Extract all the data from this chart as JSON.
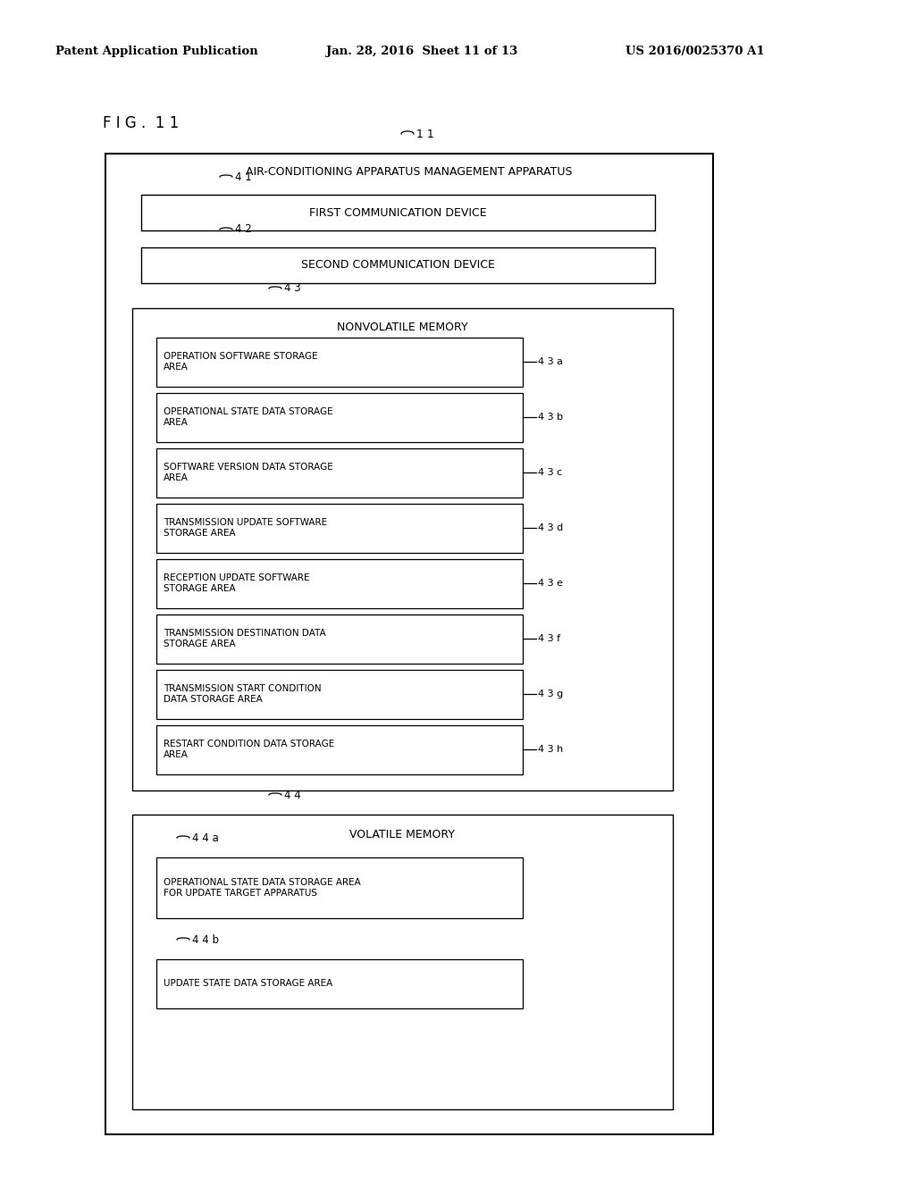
{
  "background_color": "#ffffff",
  "header_left": "Patent Application Publication",
  "header_mid": "Jan. 28, 2016  Sheet 11 of 13",
  "header_right": "US 2016/0025370 A1",
  "fig_label": "F I G .  1 1",
  "outer_box_label": "AIR-CONDITIONING APPARATUS MANAGEMENT APPARATUS",
  "outer_box_id": "1 1",
  "box41_label": "FIRST COMMUNICATION DEVICE",
  "box41_id": "4 1",
  "box42_label": "SECOND COMMUNICATION DEVICE",
  "box42_id": "4 2",
  "nonvol_label": "NONVOLATILE MEMORY",
  "nonvol_id": "4 3",
  "nonvol_items": [
    {
      "label": "OPERATION SOFTWARE STORAGE\nAREA",
      "id": "4 3 a"
    },
    {
      "label": "OPERATIONAL STATE DATA STORAGE\nAREA",
      "id": "4 3 b"
    },
    {
      "label": "SOFTWARE VERSION DATA STORAGE\nAREA",
      "id": "4 3 c"
    },
    {
      "label": "TRANSMISSION UPDATE SOFTWARE\nSTORAGE AREA",
      "id": "4 3 d"
    },
    {
      "label": "RECEPTION UPDATE SOFTWARE\nSTORAGE AREA",
      "id": "4 3 e"
    },
    {
      "label": "TRANSMISSION DESTINATION DATA\nSTORAGE AREA",
      "id": "4 3 f"
    },
    {
      "label": "TRANSMISSION START CONDITION\nDATA STORAGE AREA",
      "id": "4 3 g"
    },
    {
      "label": "RESTART CONDITION DATA STORAGE\nAREA",
      "id": "4 3 h"
    }
  ],
  "vol_label": "VOLATILE MEMORY",
  "vol_id": "4 4",
  "vol_items": [
    {
      "label": "OPERATIONAL STATE DATA STORAGE AREA\nFOR UPDATE TARGET APPARATUS",
      "id": "4 4 a"
    },
    {
      "label": "UPDATE STATE DATA STORAGE AREA",
      "id": "4 4 b"
    }
  ]
}
